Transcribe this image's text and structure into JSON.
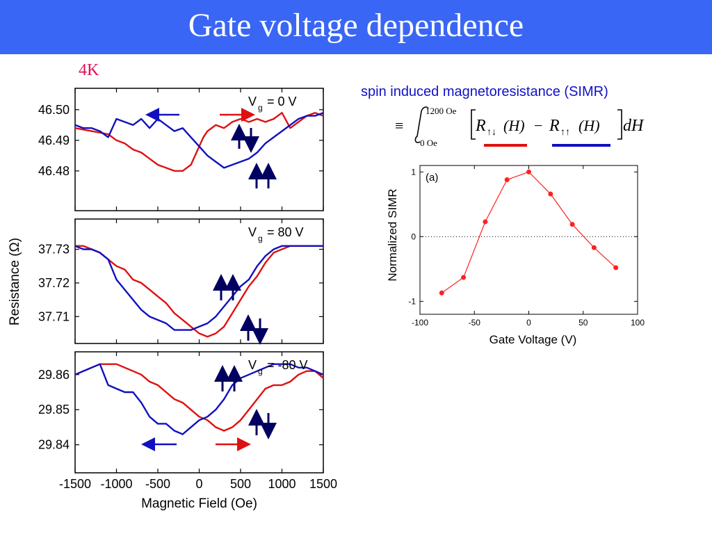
{
  "title": "Gate voltage dependence",
  "temperature": "4K",
  "colors": {
    "title_bar": "#3a66f5",
    "temperature": "#e0105a",
    "red_trace": "#e01010",
    "blue_trace": "#1010c0",
    "simr": "#ff2020"
  },
  "simr_title": "spin induced magnetoresistance (SIMR)",
  "formula": {
    "equiv": "≡",
    "upper_limit": "1200 Oe",
    "lower_limit": "0 Oe",
    "R": "R",
    "antiparallel": "↑↓",
    "parallel": "↑↑",
    "H": "(H)",
    "minus": "−",
    "dH": "dH"
  },
  "chart_data": [
    {
      "type": "line",
      "panel": "Vg = 0 V",
      "annotation": {
        "symbol": "V",
        "subscript": "g",
        "value": "= 0 V"
      },
      "xlim": [
        -1500,
        1500
      ],
      "ylim": [
        46.467,
        46.507
      ],
      "y_ticks": [
        "46.50",
        "46.49",
        "46.48"
      ],
      "y_tick_values": [
        46.5,
        46.49,
        46.48
      ],
      "series": [
        {
          "color": "red",
          "x": [
            -1500,
            -1300,
            -1100,
            -1000,
            -900,
            -800,
            -700,
            -600,
            -500,
            -400,
            -300,
            -200,
            -100,
            0,
            50,
            100,
            200,
            300,
            400,
            500,
            600,
            700,
            800,
            900,
            1000,
            1100,
            1200,
            1300,
            1400,
            1500
          ],
          "y": [
            46.494,
            46.493,
            46.492,
            46.49,
            46.489,
            46.487,
            46.486,
            46.484,
            46.482,
            46.481,
            46.48,
            46.48,
            46.482,
            46.488,
            46.491,
            46.493,
            46.495,
            46.494,
            46.496,
            46.497,
            46.496,
            46.497,
            46.496,
            46.497,
            46.499,
            46.494,
            46.496,
            46.498,
            46.499,
            46.498
          ]
        },
        {
          "color": "blue",
          "x": [
            -1500,
            -1400,
            -1300,
            -1200,
            -1100,
            -1000,
            -900,
            -800,
            -700,
            -600,
            -500,
            -400,
            -300,
            -200,
            -100,
            0,
            100,
            200,
            300,
            400,
            500,
            600,
            700,
            800,
            900,
            1000,
            1100,
            1200,
            1300,
            1400,
            1500
          ],
          "y": [
            46.495,
            46.494,
            46.494,
            46.493,
            46.491,
            46.497,
            46.496,
            46.495,
            46.497,
            46.494,
            46.497,
            46.495,
            46.493,
            46.494,
            46.491,
            46.488,
            46.485,
            46.483,
            46.481,
            46.482,
            46.483,
            46.484,
            46.486,
            46.489,
            46.491,
            46.493,
            46.495,
            46.497,
            46.498,
            46.498,
            46.499
          ]
        }
      ]
    },
    {
      "type": "line",
      "panel": "Vg = 80 V",
      "annotation": {
        "symbol": "V",
        "subscript": "g",
        "value": "= 80 V"
      },
      "xlim": [
        -1500,
        1500
      ],
      "ylim": [
        37.702,
        37.739
      ],
      "y_ticks": [
        "37.73",
        "37.72",
        "37.71"
      ],
      "y_tick_values": [
        37.73,
        37.72,
        37.71
      ],
      "series": [
        {
          "color": "red",
          "x": [
            -1500,
            -1400,
            -1300,
            -1200,
            -1100,
            -1000,
            -900,
            -800,
            -700,
            -600,
            -500,
            -400,
            -300,
            -200,
            -100,
            0,
            100,
            200,
            300,
            400,
            500,
            600,
            700,
            800,
            900,
            1000,
            1100,
            1200,
            1300,
            1400,
            1500
          ],
          "y": [
            37.731,
            37.731,
            37.73,
            37.729,
            37.727,
            37.725,
            37.724,
            37.721,
            37.72,
            37.718,
            37.716,
            37.714,
            37.711,
            37.709,
            37.707,
            37.705,
            37.704,
            37.705,
            37.707,
            37.711,
            37.715,
            37.719,
            37.722,
            37.726,
            37.729,
            37.73,
            37.731,
            37.731,
            37.731,
            37.731,
            37.731
          ]
        },
        {
          "color": "blue",
          "x": [
            -1500,
            -1400,
            -1300,
            -1200,
            -1100,
            -1000,
            -900,
            -800,
            -700,
            -600,
            -500,
            -400,
            -300,
            -200,
            -100,
            0,
            100,
            200,
            300,
            400,
            500,
            600,
            700,
            800,
            900,
            1000,
            1100,
            1200,
            1300,
            1400,
            1500
          ],
          "y": [
            37.731,
            37.73,
            37.73,
            37.729,
            37.727,
            37.721,
            37.718,
            37.715,
            37.712,
            37.71,
            37.709,
            37.708,
            37.706,
            37.706,
            37.706,
            37.707,
            37.708,
            37.71,
            37.713,
            37.716,
            37.719,
            37.721,
            37.725,
            37.728,
            37.73,
            37.731,
            37.731,
            37.731,
            37.731,
            37.731,
            37.731
          ]
        }
      ]
    },
    {
      "type": "line",
      "panel": "Vg = -80 V",
      "annotation": {
        "symbol": "V",
        "subscript": "g",
        "value": "= -80 V"
      },
      "xlim": [
        -1500,
        1500
      ],
      "ylim": [
        29.832,
        29.8665
      ],
      "y_ticks": [
        "29.86",
        "29.85",
        "29.84"
      ],
      "y_tick_values": [
        29.86,
        29.85,
        29.84
      ],
      "series": [
        {
          "color": "red",
          "x": [
            -1500,
            -1400,
            -1300,
            -1200,
            -1100,
            -1000,
            -900,
            -800,
            -700,
            -600,
            -500,
            -400,
            -300,
            -200,
            -100,
            0,
            100,
            200,
            300,
            400,
            500,
            600,
            700,
            800,
            900,
            1000,
            1100,
            1200,
            1300,
            1400,
            1500
          ],
          "y": [
            29.86,
            29.861,
            29.862,
            29.863,
            29.863,
            29.863,
            29.862,
            29.861,
            29.86,
            29.858,
            29.857,
            29.855,
            29.853,
            29.852,
            29.85,
            29.848,
            29.847,
            29.845,
            29.844,
            29.845,
            29.847,
            29.85,
            29.853,
            29.856,
            29.857,
            29.857,
            29.858,
            29.86,
            29.861,
            29.861,
            29.859
          ]
        },
        {
          "color": "blue",
          "x": [
            -1500,
            -1400,
            -1300,
            -1200,
            -1100,
            -1000,
            -900,
            -800,
            -700,
            -600,
            -500,
            -400,
            -300,
            -200,
            -100,
            0,
            100,
            200,
            300,
            400,
            500,
            600,
            700,
            800,
            900,
            1000,
            1100,
            1200,
            1300,
            1400,
            1500
          ],
          "y": [
            29.86,
            29.861,
            29.862,
            29.863,
            29.857,
            29.856,
            29.855,
            29.855,
            29.852,
            29.848,
            29.846,
            29.846,
            29.844,
            29.843,
            29.845,
            29.847,
            29.848,
            29.85,
            29.853,
            29.857,
            29.859,
            29.86,
            29.861,
            29.862,
            29.863,
            29.863,
            29.863,
            29.862,
            29.862,
            29.861,
            29.86
          ]
        }
      ]
    },
    {
      "type": "scatter",
      "panel": "(a)",
      "xlabel": "Gate Voltage (V)",
      "ylabel": "Normalized SIMR",
      "xlim": [
        -100,
        100
      ],
      "ylim": [
        -1.2,
        1.1
      ],
      "x_ticks": [
        "-100",
        "-50",
        "0",
        "50",
        "100"
      ],
      "x_tick_values": [
        -100,
        -50,
        0,
        50,
        100
      ],
      "y_ticks": [
        "1",
        "0",
        "-1"
      ],
      "y_tick_values": [
        1,
        0,
        -1
      ],
      "zero_line": true,
      "series": [
        {
          "x": [
            -80,
            -60,
            -40,
            -20,
            0,
            20,
            40,
            60,
            80
          ],
          "y": [
            -0.87,
            -0.63,
            0.23,
            0.88,
            1.0,
            0.66,
            0.19,
            -0.17,
            -0.48
          ]
        }
      ]
    }
  ],
  "shared_axes": {
    "xlabel": "Magnetic Field (Oe)",
    "ylabel": "Resistance (Ω)",
    "x_ticks": [
      "-1500",
      "-1000",
      "-500",
      "0",
      "500",
      "1000",
      "1500"
    ],
    "x_tick_values": [
      -1500,
      -1000,
      -500,
      0,
      500,
      1000,
      1500
    ]
  }
}
